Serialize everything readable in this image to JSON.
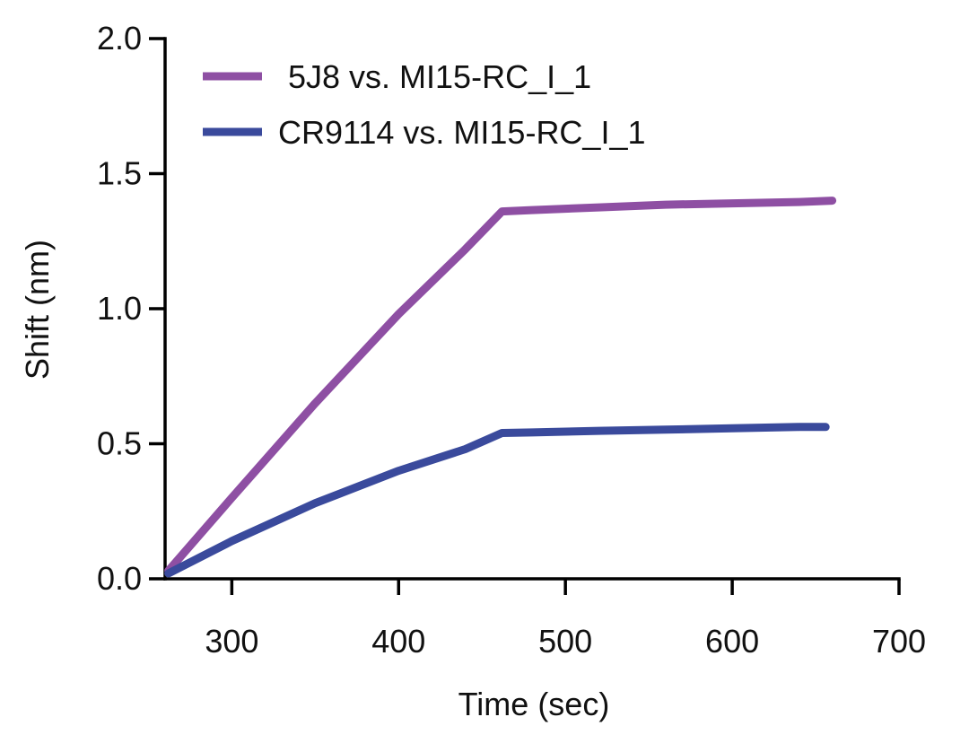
{
  "chart_data": {
    "type": "line",
    "title": "",
    "xlabel": "Time (sec)",
    "ylabel": "Shift (nm)",
    "xlim": [
      260,
      700
    ],
    "ylim": [
      0,
      2.0
    ],
    "xticks": [
      300,
      400,
      500,
      600,
      700
    ],
    "xtick_labels": [
      "300",
      "400",
      "500",
      "600",
      "700"
    ],
    "yticks": [
      0,
      0.5,
      1.0,
      1.5,
      2.0
    ],
    "ytick_labels": [
      "0.0",
      "0.5",
      "1.0",
      "1.5",
      "2.0"
    ],
    "grid": false,
    "legend_position": "top-left",
    "series": [
      {
        "name": "5J8 vs. MI15-RC_I_1",
        "color": "#8e4fa3",
        "x": [
          262,
          300,
          350,
          400,
          440,
          462,
          480,
          520,
          560,
          600,
          640,
          660
        ],
        "y": [
          0.03,
          0.3,
          0.65,
          0.98,
          1.22,
          1.36,
          1.365,
          1.375,
          1.385,
          1.39,
          1.395,
          1.4
        ]
      },
      {
        "name": "CR9114 vs. MI15-RC_I_1",
        "color": "#3a4a9c",
        "x": [
          262,
          300,
          350,
          400,
          440,
          462,
          480,
          520,
          560,
          600,
          640,
          656
        ],
        "y": [
          0.02,
          0.14,
          0.28,
          0.4,
          0.48,
          0.54,
          0.542,
          0.548,
          0.552,
          0.557,
          0.562,
          0.562
        ]
      }
    ]
  }
}
